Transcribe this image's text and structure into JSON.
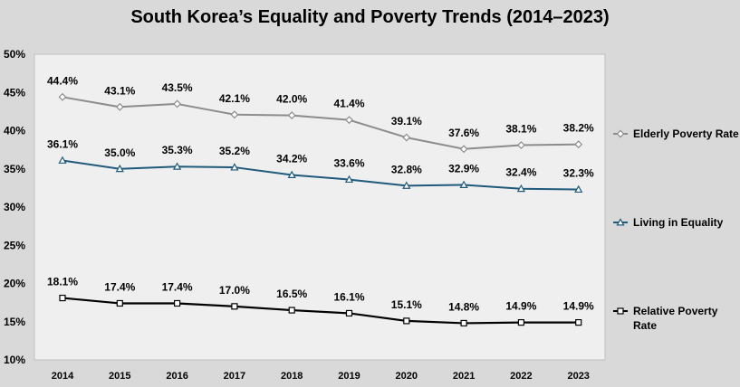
{
  "chart_data": {
    "type": "line",
    "title": "South Korea’s Equality and Poverty Trends (2014–2023)",
    "xlabel": "",
    "ylabel": "",
    "x": [
      "2014",
      "2015",
      "2016",
      "2017",
      "2018",
      "2019",
      "2020",
      "2021",
      "2022",
      "2023"
    ],
    "ylim": [
      10,
      50
    ],
    "yticks": [
      10,
      15,
      20,
      25,
      30,
      35,
      40,
      45,
      50
    ],
    "ytick_labels": [
      "10%",
      "15%",
      "20%",
      "25%",
      "30%",
      "35%",
      "40%",
      "45%",
      "50%"
    ],
    "grid": false,
    "legend_position": "right",
    "plot_background": "#efefef",
    "figure_background": "#d9d9d9",
    "series": [
      {
        "name": "Elderly Poverty Rate",
        "color": "#8c8c8c",
        "marker": "diamond",
        "values": [
          44.4,
          43.1,
          43.5,
          42.1,
          42.0,
          41.4,
          39.1,
          37.6,
          38.1,
          38.2
        ],
        "labels": [
          "44.4%",
          "43.1%",
          "43.5%",
          "42.1%",
          "42.0%",
          "41.4%",
          "39.1%",
          "37.6%",
          "38.1%",
          "38.2%"
        ]
      },
      {
        "name": "Living in Equality",
        "color": "#1f5a7a",
        "marker": "triangle",
        "values": [
          36.1,
          35.0,
          35.3,
          35.2,
          34.2,
          33.6,
          32.8,
          32.9,
          32.4,
          32.3
        ],
        "labels": [
          "36.1%",
          "35.0%",
          "35.3%",
          "35.2%",
          "34.2%",
          "33.6%",
          "32.8%",
          "32.9%",
          "32.4%",
          "32.3%"
        ]
      },
      {
        "name": "Relative Poverty Rate",
        "color": "#000000",
        "marker": "square",
        "values": [
          18.1,
          17.4,
          17.4,
          17.0,
          16.5,
          16.1,
          15.1,
          14.8,
          14.9,
          14.9
        ],
        "labels": [
          "18.1%",
          "17.4%",
          "17.4%",
          "17.0%",
          "16.5%",
          "16.1%",
          "15.1%",
          "14.8%",
          "14.9%",
          "14.9%"
        ]
      }
    ]
  }
}
